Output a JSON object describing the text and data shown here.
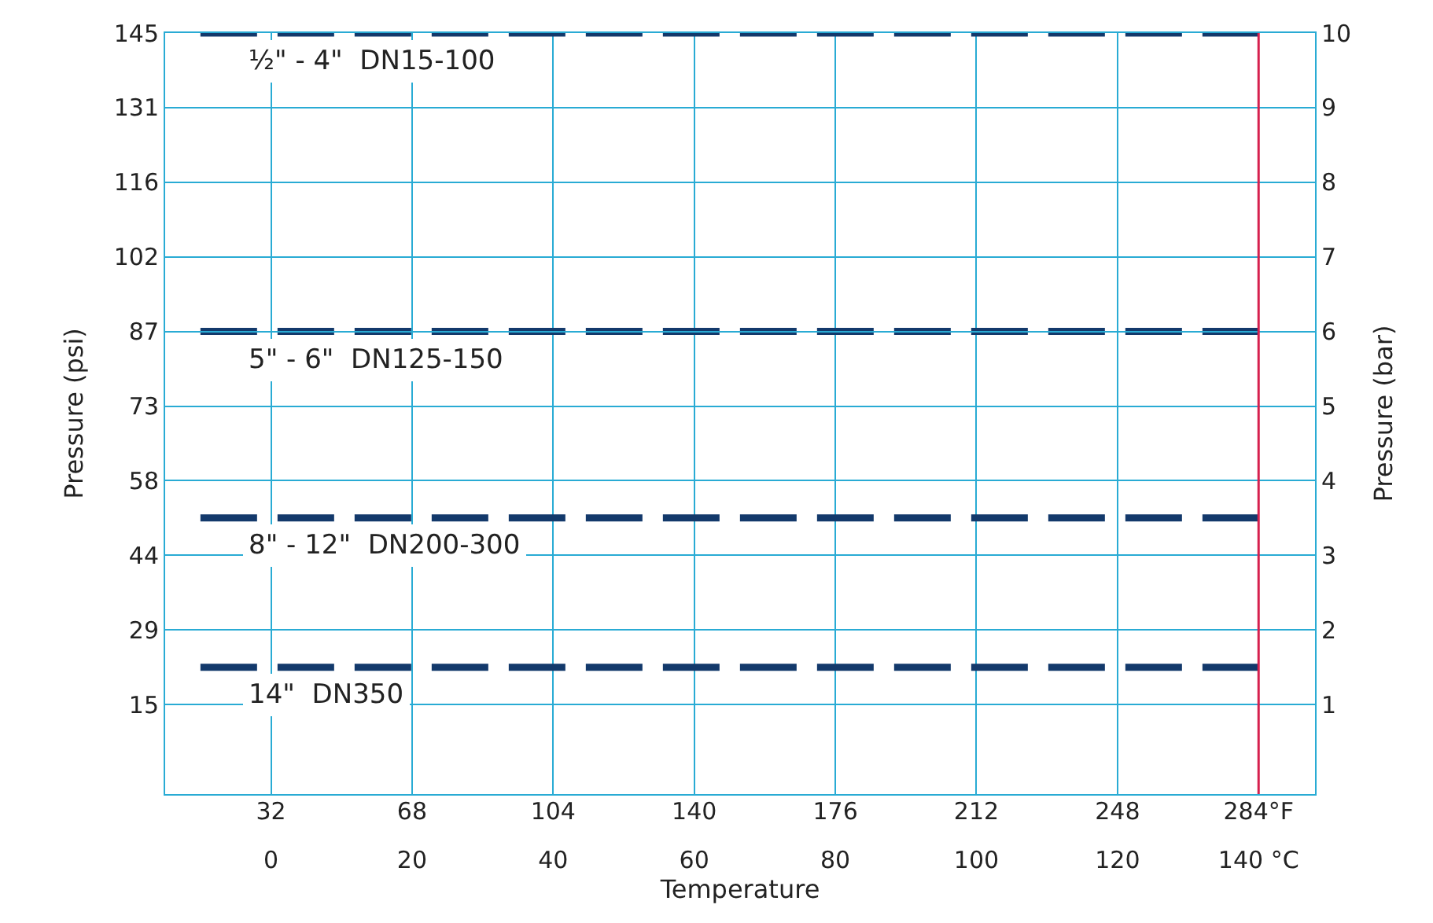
{
  "chart_data": {
    "type": "line",
    "xlabel": "Temperature",
    "ylabel": "Pressure (psi)",
    "y2label": "Pressure (bar)",
    "xlim": [
      -15,
      148
    ],
    "xticks": [
      0,
      20,
      40,
      60,
      80,
      100,
      120,
      {
        "value": 140,
        "label": "140 °C"
      }
    ],
    "x2lim": [
      5,
      298.4
    ],
    "x2ticks": [
      32,
      68,
      104,
      140,
      176,
      212,
      248,
      {
        "value": 284,
        "label": "284°F"
      }
    ],
    "ylim": [
      -2.9,
      145
    ],
    "yticks": [
      {
        "value": 14.5,
        "label": "15"
      },
      29,
      {
        "value": 43.5,
        "label": "44"
      },
      58,
      {
        "value": 72.5,
        "label": "73"
      },
      87,
      {
        "value": 101.5,
        "label": "102"
      },
      116,
      {
        "value": 130.5,
        "label": "131"
      },
      145
    ],
    "y2lim": [
      -0.2,
      10
    ],
    "y2ticks": [
      1,
      2,
      3,
      4,
      5,
      6,
      7,
      8,
      9,
      10
    ],
    "grid": true,
    "legend": false,
    "line_style": "dashed",
    "marker": "none",
    "x": [
      -10,
      140
    ],
    "series": [
      {
        "name": "½\" - 4\"  DN15-100",
        "color": "#13396b",
        "axis": "y2",
        "values": [
          10,
          10
        ]
      },
      {
        "name": "5\" - 6\"  DN125-150",
        "color": "#13396b",
        "axis": "y2",
        "values": [
          6,
          6
        ]
      },
      {
        "name": "8\" - 12\"  DN200-300",
        "color": "#13396b",
        "axis": "y2",
        "values": [
          3.5,
          3.5
        ]
      },
      {
        "name": "14\"  DN350",
        "color": "#13396b",
        "axis": "y2",
        "values": [
          1.5,
          1.5
        ]
      }
    ],
    "ref_lines": [
      {
        "axis": "x",
        "value": 140,
        "color": "#d6204e",
        "line_style": "solid"
      }
    ]
  }
}
